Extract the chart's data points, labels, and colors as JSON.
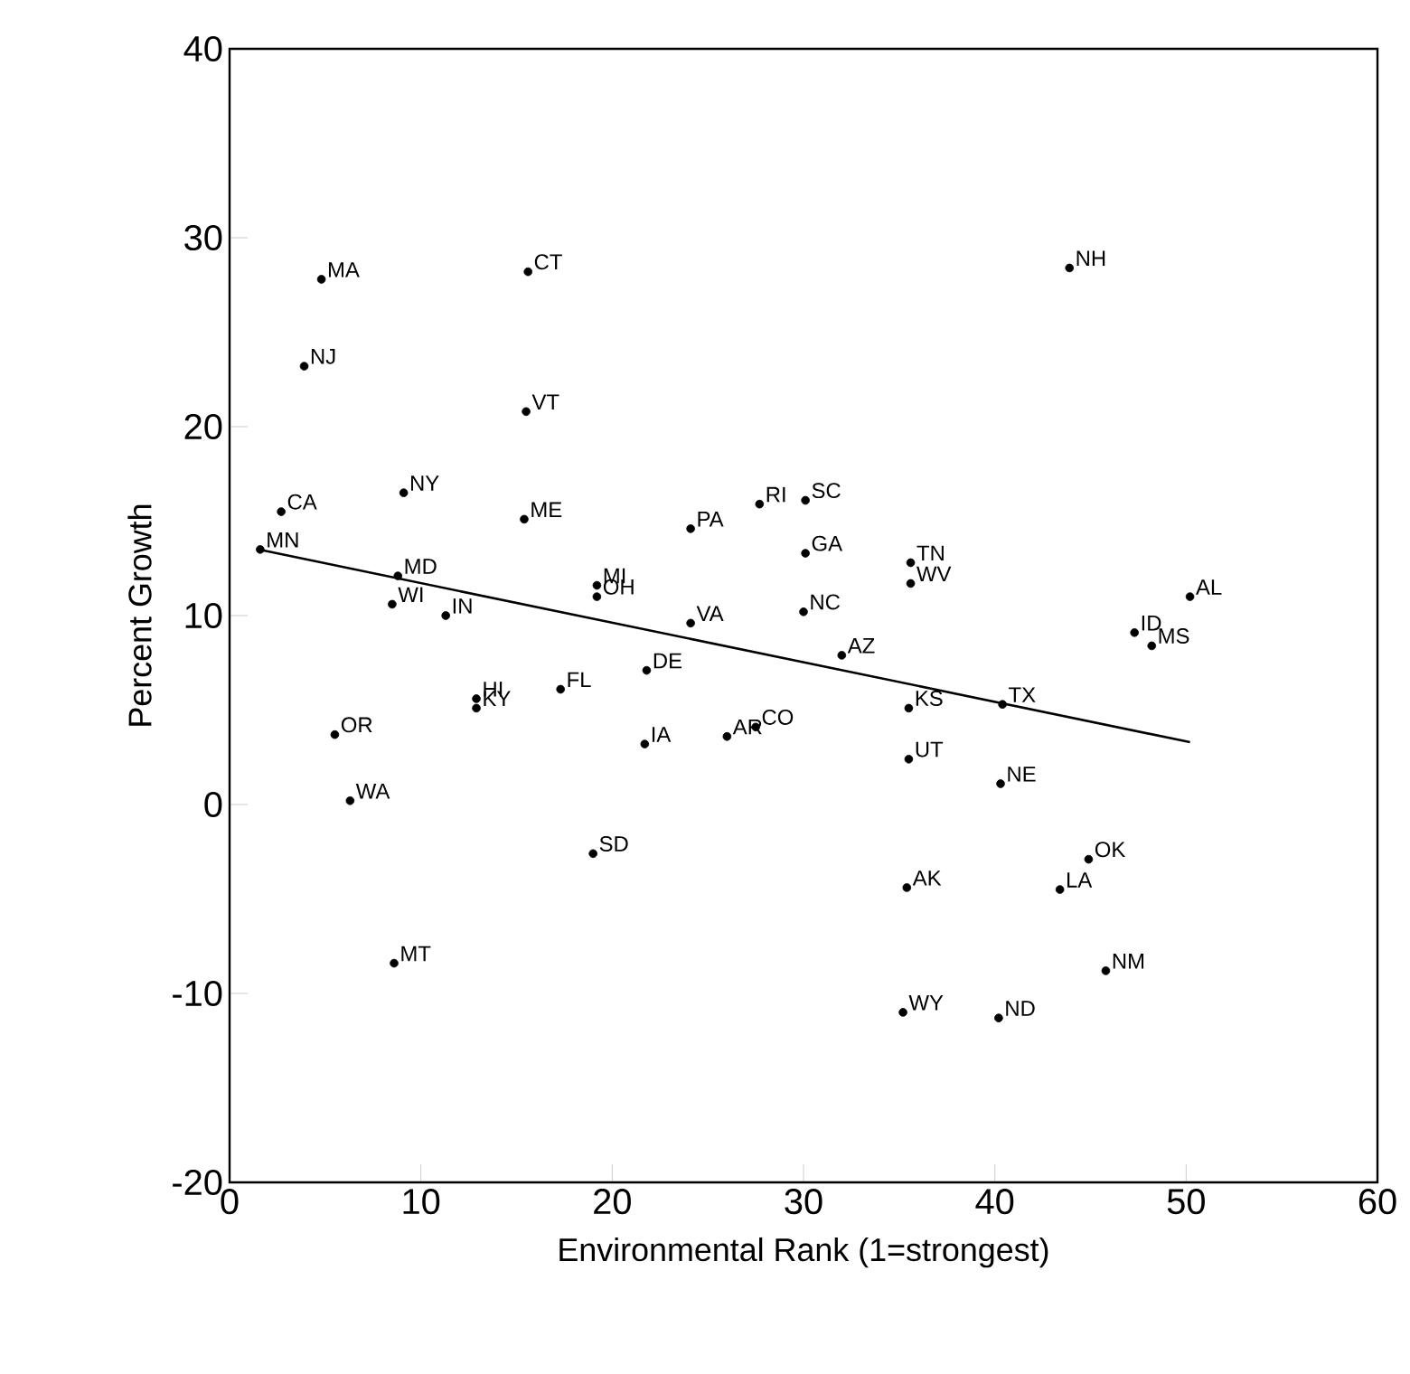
{
  "chart_data": {
    "type": "scatter",
    "xlabel": "Environmental Rank (1=strongest)",
    "ylabel": "Percent Growth",
    "xlim": [
      0,
      60
    ],
    "ylim": [
      -20,
      40
    ],
    "xticks": [
      0,
      10,
      20,
      30,
      40,
      50,
      60
    ],
    "yticks": [
      -20,
      -10,
      0,
      10,
      20,
      30,
      40
    ],
    "grid": false,
    "series": [
      {
        "color": "#000000",
        "marker": "circle",
        "x": [
          4.8,
          15.6,
          3.9,
          15.5,
          9.1,
          2.7,
          15.4,
          24.1,
          1.6,
          8.8,
          8.5,
          11.3,
          19.2,
          19.2,
          24.1,
          21.8,
          17.3,
          12.9,
          12.9,
          5.5,
          21.7,
          26.0,
          27.5,
          6.3,
          27.7,
          30.1,
          30.1,
          30.0,
          32.0,
          35.6,
          35.6,
          35.5,
          35.5,
          40.4,
          50.2,
          47.3,
          48.2,
          40.3,
          43.9,
          35.4,
          43.4,
          44.9,
          45.8,
          35.2,
          40.2,
          19.0,
          8.6
        ],
        "values": [
          27.8,
          28.2,
          23.2,
          20.8,
          16.5,
          15.5,
          15.1,
          14.6,
          13.5,
          12.1,
          10.6,
          10.0,
          11.6,
          11.0,
          9.6,
          7.1,
          6.1,
          5.6,
          5.1,
          3.7,
          3.2,
          3.6,
          4.1,
          0.2,
          15.9,
          16.1,
          13.3,
          10.2,
          7.9,
          12.8,
          11.7,
          5.1,
          2.4,
          5.3,
          11.0,
          9.1,
          8.4,
          1.1,
          28.4,
          -4.4,
          -4.5,
          -2.9,
          -8.8,
          -11.0,
          -11.3,
          -2.6,
          -8.4
        ]
      },
      {
        "type": "line",
        "color": "#000000",
        "marker": "none",
        "x": [
          1.5,
          50.2
        ],
        "values": [
          13.5,
          3.3
        ]
      }
    ],
    "annotations": [
      {
        "text": "MA",
        "x": 4.8,
        "y": 27.8
      },
      {
        "text": "CT",
        "x": 15.6,
        "y": 28.2
      },
      {
        "text": "NJ",
        "x": 3.9,
        "y": 23.2
      },
      {
        "text": "VT",
        "x": 15.5,
        "y": 20.8
      },
      {
        "text": "NY",
        "x": 9.1,
        "y": 16.5
      },
      {
        "text": "CA",
        "x": 2.7,
        "y": 15.5
      },
      {
        "text": "ME",
        "x": 15.4,
        "y": 15.1
      },
      {
        "text": "PA",
        "x": 24.1,
        "y": 14.6
      },
      {
        "text": "MN",
        "x": 1.6,
        "y": 13.5
      },
      {
        "text": "MD",
        "x": 8.8,
        "y": 12.1
      },
      {
        "text": "WI",
        "x": 8.5,
        "y": 10.6
      },
      {
        "text": "IN",
        "x": 11.3,
        "y": 10.0
      },
      {
        "text": "MI",
        "x": 19.2,
        "y": 11.6
      },
      {
        "text": "OH",
        "x": 19.2,
        "y": 11.0
      },
      {
        "text": "VA",
        "x": 24.1,
        "y": 9.6
      },
      {
        "text": "DE",
        "x": 21.8,
        "y": 7.1
      },
      {
        "text": "FL",
        "x": 17.3,
        "y": 6.1
      },
      {
        "text": "HI",
        "x": 12.9,
        "y": 5.6
      },
      {
        "text": "KY",
        "x": 12.9,
        "y": 5.1
      },
      {
        "text": "OR",
        "x": 5.5,
        "y": 3.7
      },
      {
        "text": "IA",
        "x": 21.7,
        "y": 3.2
      },
      {
        "text": "AR",
        "x": 26.0,
        "y": 3.6
      },
      {
        "text": "CO",
        "x": 27.5,
        "y": 4.1
      },
      {
        "text": "WA",
        "x": 6.3,
        "y": 0.2
      },
      {
        "text": "RI",
        "x": 27.7,
        "y": 15.9
      },
      {
        "text": "SC",
        "x": 30.1,
        "y": 16.1
      },
      {
        "text": "GA",
        "x": 30.1,
        "y": 13.3
      },
      {
        "text": "NC",
        "x": 30.0,
        "y": 10.2
      },
      {
        "text": "AZ",
        "x": 32.0,
        "y": 7.9
      },
      {
        "text": "TN",
        "x": 35.6,
        "y": 12.8
      },
      {
        "text": "WV",
        "x": 35.6,
        "y": 11.7
      },
      {
        "text": "KS",
        "x": 35.5,
        "y": 5.1
      },
      {
        "text": "UT",
        "x": 35.5,
        "y": 2.4
      },
      {
        "text": "TX",
        "x": 40.4,
        "y": 5.3
      },
      {
        "text": "AL",
        "x": 50.2,
        "y": 11.0
      },
      {
        "text": "ID",
        "x": 47.3,
        "y": 9.1
      },
      {
        "text": "MS",
        "x": 48.2,
        "y": 8.4
      },
      {
        "text": "NE",
        "x": 40.3,
        "y": 1.1
      },
      {
        "text": "NH",
        "x": 43.9,
        "y": 28.4
      },
      {
        "text": "AK",
        "x": 35.4,
        "y": -4.4
      },
      {
        "text": "LA",
        "x": 43.4,
        "y": -4.5
      },
      {
        "text": "OK",
        "x": 44.9,
        "y": -2.9
      },
      {
        "text": "NM",
        "x": 45.8,
        "y": -8.8
      },
      {
        "text": "WY",
        "x": 35.2,
        "y": -11.0
      },
      {
        "text": "ND",
        "x": 40.2,
        "y": -11.3
      },
      {
        "text": "SD",
        "x": 19.0,
        "y": -2.6
      },
      {
        "text": "MT",
        "x": 8.6,
        "y": -8.4
      }
    ]
  }
}
